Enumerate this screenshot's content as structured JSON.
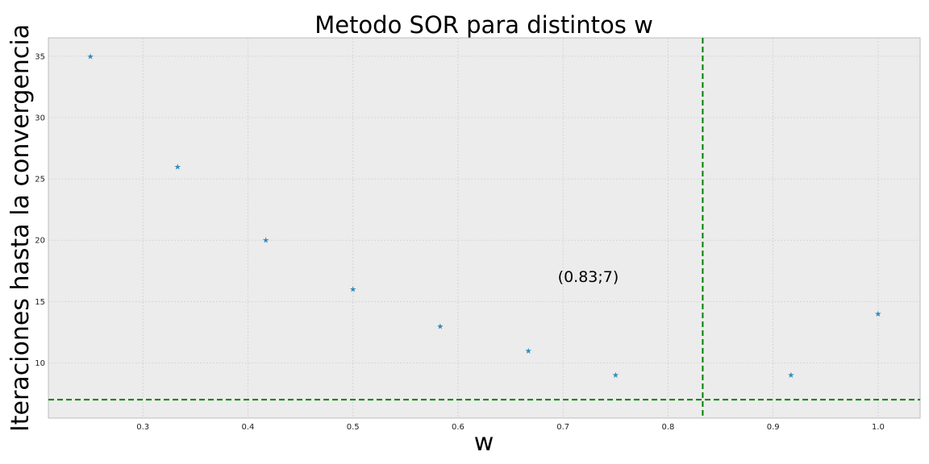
{
  "chart_data": {
    "type": "scatter",
    "title": "Metodo SOR para distintos w",
    "xlabel": "w",
    "ylabel": "Iteraciones hasta la convergencia",
    "xlim": [
      0.21,
      1.04
    ],
    "ylim": [
      5.5,
      36.5
    ],
    "x_ticks": [
      0.3,
      0.4,
      0.5,
      0.6,
      0.7,
      0.8,
      0.9,
      1.0
    ],
    "x_tick_labels": [
      "0.3",
      "0.4",
      "0.5",
      "0.6",
      "0.7",
      "0.8",
      "0.9",
      "1.0"
    ],
    "y_ticks": [
      10,
      15,
      20,
      25,
      30,
      35
    ],
    "y_tick_labels": [
      "10",
      "15",
      "20",
      "25",
      "30",
      "35"
    ],
    "grid": true,
    "marker": "star",
    "marker_color": "#348abd",
    "points": [
      {
        "x": 0.25,
        "y": 35
      },
      {
        "x": 0.333,
        "y": 26
      },
      {
        "x": 0.417,
        "y": 20
      },
      {
        "x": 0.5,
        "y": 16
      },
      {
        "x": 0.583,
        "y": 13
      },
      {
        "x": 0.667,
        "y": 11
      },
      {
        "x": 0.75,
        "y": 9
      },
      {
        "x": 0.917,
        "y": 9
      },
      {
        "x": 1.0,
        "y": 14
      }
    ],
    "reference_lines": {
      "vertical_x": 0.833,
      "horizontal_y": 7,
      "color": "#008000"
    },
    "annotation": {
      "text": "(0.83;7)",
      "x": 0.695,
      "y": 17
    }
  }
}
